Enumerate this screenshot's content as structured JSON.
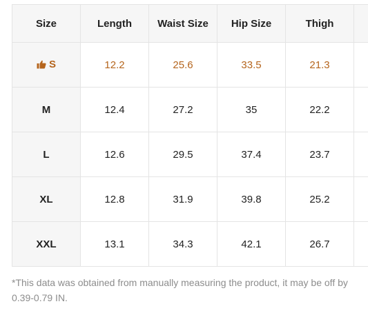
{
  "table": {
    "headers": [
      "Size",
      "Length",
      "Waist Size",
      "Hip Size",
      "Thigh",
      ""
    ],
    "rows": [
      {
        "size": "S",
        "recommended": true,
        "values": [
          "12.2",
          "25.6",
          "33.5",
          "21.3",
          ""
        ]
      },
      {
        "size": "M",
        "recommended": false,
        "values": [
          "12.4",
          "27.2",
          "35",
          "22.2",
          ""
        ]
      },
      {
        "size": "L",
        "recommended": false,
        "values": [
          "12.6",
          "29.5",
          "37.4",
          "23.7",
          ""
        ]
      },
      {
        "size": "XL",
        "recommended": false,
        "values": [
          "12.8",
          "31.9",
          "39.8",
          "25.2",
          ""
        ]
      },
      {
        "size": "XXL",
        "recommended": false,
        "values": [
          "13.1",
          "34.3",
          "42.1",
          "26.7",
          ""
        ]
      }
    ]
  },
  "recommended_icon": "thumbs-up-icon",
  "colors": {
    "highlight": "#b5651d",
    "header_bg": "#f6f6f6",
    "border": "#e4e4e4",
    "footnote": "#8c8c8c"
  },
  "footnote": "*This data was obtained from manually measuring the product, it may be off by 0.39-0.79 IN."
}
